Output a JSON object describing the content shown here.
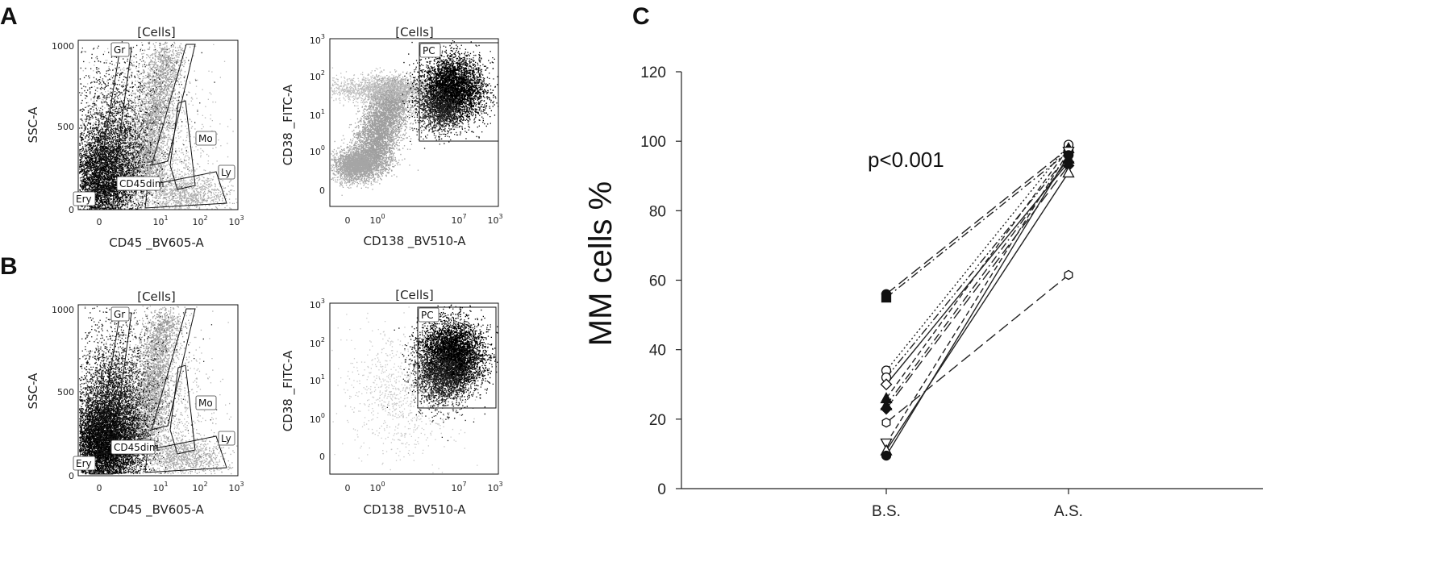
{
  "panel_labels": {
    "a": "A",
    "b": "B",
    "c": "C"
  },
  "gate_title": "[Cells]",
  "cd45_plot": {
    "xlabel": "CD45 _BV605-A",
    "ylabel": "SSC-A",
    "xticks": {
      "t0": "0",
      "t1": "10",
      "t2": "10",
      "t3": "10"
    },
    "xtick_exp": {
      "t1": "1",
      "t2": "2",
      "t3": "3"
    },
    "yticks": {
      "t0": "0",
      "t500": "500",
      "t1000": "1000"
    },
    "gates": {
      "gr": "Gr",
      "mo": "Mo",
      "ly": "Ly",
      "cd45dim": "CD45dim",
      "ery": "Ery"
    }
  },
  "cd138_plot": {
    "xlabel": "CD138 _BV510-A",
    "ylabel": "CD38 _FITC-A",
    "xticks": {
      "t0": "0",
      "t1": "10",
      "t2": "10",
      "t3": "10"
    },
    "xtick_exp": {
      "t1": "0",
      "t2": "7",
      "t3": "3"
    },
    "yticks": {
      "t0": "0",
      "t1": "10",
      "t2": "10",
      "t3": "10",
      "t4": "10"
    },
    "ytick_exp": {
      "t1": "0",
      "t2": "1",
      "t3": "2",
      "t4": "3"
    },
    "gate": "PC"
  },
  "chart_data": {
    "type": "line",
    "title": "",
    "xlabel": "",
    "ylabel": "MM cells %",
    "categories": [
      "B.S.",
      "A.S."
    ],
    "ylim": [
      0,
      120
    ],
    "yticks": [
      0,
      20,
      40,
      60,
      80,
      100,
      120
    ],
    "annotation": "p<0.001",
    "grid": false,
    "series": [
      {
        "values": [
          56,
          98
        ],
        "marker": "filled-circle",
        "dash": "long-dash"
      },
      {
        "values": [
          55,
          97
        ],
        "marker": "filled-square",
        "dash": "dash-dot"
      },
      {
        "values": [
          34,
          99
        ],
        "marker": "open-circle",
        "dash": "dotted"
      },
      {
        "values": [
          32,
          96
        ],
        "marker": "open-circle",
        "dash": "dash-dot-dot"
      },
      {
        "values": [
          30,
          94
        ],
        "marker": "open-diamond",
        "dash": "solid"
      },
      {
        "values": [
          26,
          98
        ],
        "marker": "filled-triangle",
        "dash": "dashed"
      },
      {
        "values": [
          24,
          95
        ],
        "marker": "filled-triangle",
        "dash": "dash-dot"
      },
      {
        "values": [
          23,
          93
        ],
        "marker": "filled-diamond",
        "dash": "long-dash"
      },
      {
        "values": [
          19,
          61.5
        ],
        "marker": "open-hexagon",
        "dash": "long-dash"
      },
      {
        "values": [
          13,
          97
        ],
        "marker": "open-down-triangle",
        "dash": "dashed"
      },
      {
        "values": [
          11,
          91
        ],
        "marker": "open-triangle",
        "dash": "solid"
      },
      {
        "values": [
          9.5,
          96
        ],
        "marker": "filled-circle",
        "dash": "solid"
      }
    ]
  }
}
